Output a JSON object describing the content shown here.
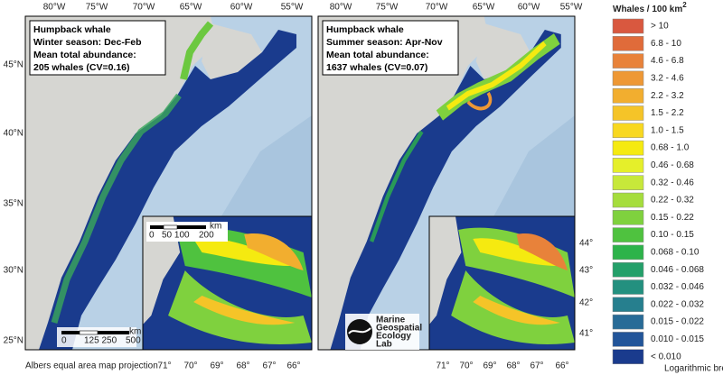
{
  "maps": [
    {
      "lon_labels": [
        "80°W",
        "75°W",
        "70°W",
        "65°W",
        "60°W",
        "55°W"
      ],
      "lat_labels": [
        "45°N",
        "40°N",
        "35°N",
        "30°N",
        "25°N"
      ],
      "info": [
        "Humpback whale",
        "Winter season: Dec-Feb",
        "Mean total abundance:",
        "205 whales (CV=0.16)"
      ],
      "scale_bar": [
        "0",
        "125 250",
        "500",
        "km"
      ],
      "inset_scale": [
        "0",
        "50 100",
        "200",
        "km"
      ],
      "inset_lon_labels": [
        "71°",
        "70°",
        "69°",
        "68°",
        "67°",
        "66°"
      ],
      "season": "winter"
    },
    {
      "lon_labels": [
        "80°W",
        "75°W",
        "70°W",
        "65°W",
        "60°W",
        "55°W"
      ],
      "info": [
        "Humpback whale",
        "Summer season: Apr-Nov",
        "Mean total abundance:",
        "1637 whales (CV=0.07)"
      ],
      "inset_lon_labels": [
        "71°",
        "70°",
        "69°",
        "68°",
        "67°",
        "66°"
      ],
      "inset_lat_labels": [
        "44°",
        "43°",
        "42°",
        "41°"
      ],
      "logo": [
        "Marine",
        "Geospatial",
        "Ecology",
        "Lab"
      ],
      "season": "summer"
    }
  ],
  "projection_note": "Albers equal area map projection",
  "legend": {
    "title": "Whales / 100 km",
    "title_sup": "2",
    "items": [
      {
        "label": "> 10",
        "color": "#d9583f"
      },
      {
        "label": "6.8 - 10",
        "color": "#e06b3a"
      },
      {
        "label": "4.6 - 6.8",
        "color": "#e8823a"
      },
      {
        "label": "3.2 - 4.6",
        "color": "#ee9835"
      },
      {
        "label": "2.2 - 3.2",
        "color": "#f2ae2f"
      },
      {
        "label": "1.5 - 2.2",
        "color": "#f5c428"
      },
      {
        "label": "1.0 - 1.5",
        "color": "#f8d820"
      },
      {
        "label": "0.68 - 1.0",
        "color": "#f5ea10"
      },
      {
        "label": "0.46 - 0.68",
        "color": "#e5ef2a"
      },
      {
        "label": "0.32 - 0.46",
        "color": "#c7e83a"
      },
      {
        "label": "0.22 - 0.32",
        "color": "#a5dd3c"
      },
      {
        "label": "0.15 - 0.22",
        "color": "#7fd13e"
      },
      {
        "label": "0.10 - 0.15",
        "color": "#4fc23f"
      },
      {
        "label": "0.068 - 0.10",
        "color": "#2db34a"
      },
      {
        "label": "0.046 - 0.068",
        "color": "#24a06a"
      },
      {
        "label": "0.032 - 0.046",
        "color": "#23907f"
      },
      {
        "label": "0.022 - 0.032",
        "color": "#267f8e"
      },
      {
        "label": "0.015 - 0.022",
        "color": "#286b97"
      },
      {
        "label": "0.010 - 0.015",
        "color": "#22559a"
      },
      {
        "label": "< 0.010",
        "color": "#1a3b8d"
      }
    ],
    "note": "Logarithmic breaks"
  }
}
